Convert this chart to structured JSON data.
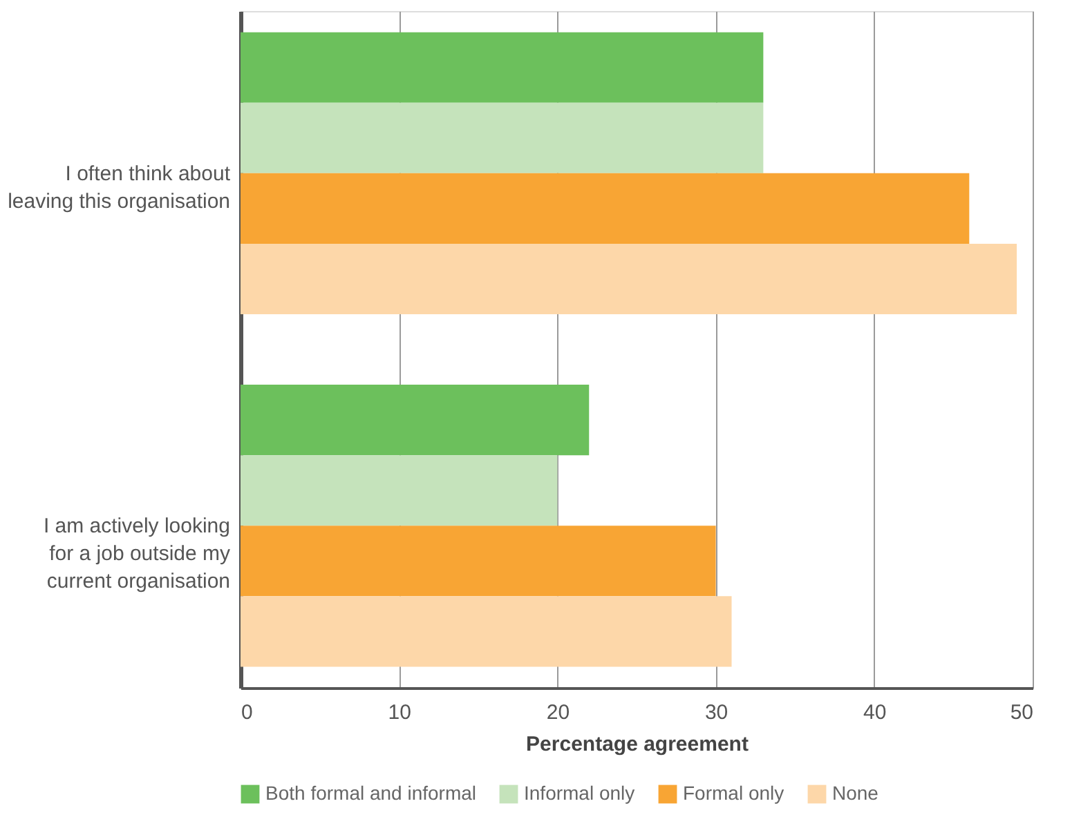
{
  "chart_data": {
    "type": "bar",
    "orientation": "horizontal",
    "xlabel": "Percentage agreement",
    "categories": [
      "I often think about leaving this organisation",
      "I am actively looking for a job outside my current organisation"
    ],
    "series": [
      {
        "name": "Both formal and informal",
        "color": "#6cc05c",
        "values": [
          33,
          22
        ]
      },
      {
        "name": "Informal only",
        "color": "#c5e3bb",
        "values": [
          33,
          20
        ]
      },
      {
        "name": "Formal only",
        "color": "#f8a534",
        "values": [
          46,
          30
        ]
      },
      {
        "name": "None",
        "color": "#fdd7a9",
        "values": [
          49,
          31
        ]
      }
    ],
    "xlim": [
      0,
      50
    ],
    "xticks": [
      0,
      10,
      20,
      30,
      40,
      50
    ],
    "grid": "x",
    "legend": "bottom"
  }
}
